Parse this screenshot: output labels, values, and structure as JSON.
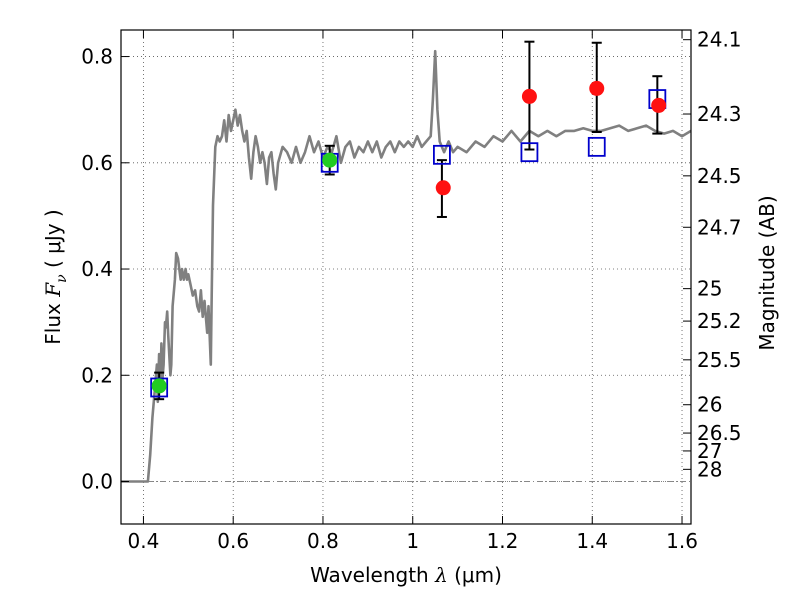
{
  "chart_data": {
    "type": "scatter",
    "xlabel": "Wavelength  λ (μm)",
    "xlabel_parts": {
      "prefix": "Wavelength  ",
      "symbol": "λ",
      "suffix": " (μm)"
    },
    "ylabel": "Flux  F_ν  ( μJy )",
    "ylabel_parts": {
      "prefix": "Flux  ",
      "symbol": "F",
      "subscript": "ν",
      "suffix": "  ( μJy )"
    },
    "y2label": "Magnitude (AB)",
    "xlim": [
      0.35,
      1.62
    ],
    "ylim": [
      -0.08,
      0.85
    ],
    "grid": true,
    "grid_style": "dotted",
    "x_ticks": [
      {
        "value": 0.4,
        "label": "0.4"
      },
      {
        "value": 0.6,
        "label": "0.6"
      },
      {
        "value": 0.8,
        "label": "0.8"
      },
      {
        "value": 1.0,
        "label": "1"
      },
      {
        "value": 1.2,
        "label": "1.2"
      },
      {
        "value": 1.4,
        "label": "1.4"
      },
      {
        "value": 1.6,
        "label": "1.6"
      }
    ],
    "y_ticks": [
      {
        "value": 0.0,
        "label": "0.0"
      },
      {
        "value": 0.2,
        "label": "0.2"
      },
      {
        "value": 0.4,
        "label": "0.4"
      },
      {
        "value": 0.6,
        "label": "0.6"
      },
      {
        "value": 0.8,
        "label": "0.8"
      }
    ],
    "y2_ticks": [
      {
        "value": 24.1,
        "label": "24.1"
      },
      {
        "value": 24.3,
        "label": "24.3"
      },
      {
        "value": 24.5,
        "label": "24.5"
      },
      {
        "value": 24.7,
        "label": "24.7"
      },
      {
        "value": 25.0,
        "label": "25"
      },
      {
        "value": 25.2,
        "label": "25.2"
      },
      {
        "value": 25.5,
        "label": "25.5"
      },
      {
        "value": 26.0,
        "label": "26"
      },
      {
        "value": 26.5,
        "label": "26.5"
      },
      {
        "value": 27.0,
        "label": "27"
      },
      {
        "value": 28.0,
        "label": "28"
      }
    ],
    "zero_line": {
      "y": 0.0,
      "style": "dash-dot",
      "color": "#888888"
    },
    "series": [
      {
        "kind": "line",
        "color": "#808080",
        "points": [
          [
            0.35,
            0.0
          ],
          [
            0.4,
            0.0
          ],
          [
            0.41,
            0.0
          ],
          [
            0.415,
            0.05
          ],
          [
            0.42,
            0.12
          ],
          [
            0.425,
            0.17
          ],
          [
            0.43,
            0.22
          ],
          [
            0.432,
            0.15
          ],
          [
            0.435,
            0.24
          ],
          [
            0.438,
            0.18
          ],
          [
            0.44,
            0.26
          ],
          [
            0.442,
            0.19
          ],
          [
            0.445,
            0.22
          ],
          [
            0.448,
            0.3
          ],
          [
            0.45,
            0.29
          ],
          [
            0.453,
            0.32
          ],
          [
            0.455,
            0.28
          ],
          [
            0.458,
            0.23
          ],
          [
            0.46,
            0.2
          ],
          [
            0.462,
            0.22
          ],
          [
            0.465,
            0.33
          ],
          [
            0.47,
            0.38
          ],
          [
            0.473,
            0.43
          ],
          [
            0.477,
            0.42
          ],
          [
            0.48,
            0.4
          ],
          [
            0.483,
            0.38
          ],
          [
            0.486,
            0.4
          ],
          [
            0.49,
            0.38
          ],
          [
            0.494,
            0.4
          ],
          [
            0.497,
            0.38
          ],
          [
            0.5,
            0.39
          ],
          [
            0.505,
            0.37
          ],
          [
            0.51,
            0.35
          ],
          [
            0.515,
            0.36
          ],
          [
            0.52,
            0.33
          ],
          [
            0.524,
            0.32
          ],
          [
            0.528,
            0.36
          ],
          [
            0.532,
            0.31
          ],
          [
            0.536,
            0.34
          ],
          [
            0.54,
            0.3
          ],
          [
            0.542,
            0.28
          ],
          [
            0.545,
            0.33
          ],
          [
            0.55,
            0.22
          ],
          [
            0.552,
            0.35
          ],
          [
            0.555,
            0.52
          ],
          [
            0.56,
            0.63
          ],
          [
            0.565,
            0.65
          ],
          [
            0.57,
            0.64
          ],
          [
            0.575,
            0.65
          ],
          [
            0.58,
            0.68
          ],
          [
            0.585,
            0.64
          ],
          [
            0.59,
            0.69
          ],
          [
            0.595,
            0.66
          ],
          [
            0.6,
            0.68
          ],
          [
            0.605,
            0.7
          ],
          [
            0.61,
            0.67
          ],
          [
            0.615,
            0.69
          ],
          [
            0.62,
            0.66
          ],
          [
            0.625,
            0.64
          ],
          [
            0.63,
            0.66
          ],
          [
            0.635,
            0.61
          ],
          [
            0.64,
            0.57
          ],
          [
            0.645,
            0.62
          ],
          [
            0.65,
            0.65
          ],
          [
            0.655,
            0.63
          ],
          [
            0.66,
            0.6
          ],
          [
            0.665,
            0.62
          ],
          [
            0.67,
            0.6
          ],
          [
            0.675,
            0.56
          ],
          [
            0.68,
            0.61
          ],
          [
            0.685,
            0.62
          ],
          [
            0.69,
            0.58
          ],
          [
            0.695,
            0.55
          ],
          [
            0.7,
            0.6
          ],
          [
            0.71,
            0.63
          ],
          [
            0.72,
            0.62
          ],
          [
            0.73,
            0.6
          ],
          [
            0.74,
            0.63
          ],
          [
            0.75,
            0.6
          ],
          [
            0.76,
            0.62
          ],
          [
            0.77,
            0.65
          ],
          [
            0.78,
            0.62
          ],
          [
            0.79,
            0.64
          ],
          [
            0.8,
            0.61
          ],
          [
            0.81,
            0.63
          ],
          [
            0.82,
            0.62
          ],
          [
            0.83,
            0.65
          ],
          [
            0.84,
            0.6
          ],
          [
            0.85,
            0.63
          ],
          [
            0.86,
            0.64
          ],
          [
            0.87,
            0.61
          ],
          [
            0.88,
            0.63
          ],
          [
            0.89,
            0.62
          ],
          [
            0.9,
            0.64
          ],
          [
            0.91,
            0.62
          ],
          [
            0.92,
            0.64
          ],
          [
            0.93,
            0.61
          ],
          [
            0.94,
            0.63
          ],
          [
            0.95,
            0.64
          ],
          [
            0.96,
            0.62
          ],
          [
            0.97,
            0.64
          ],
          [
            0.98,
            0.63
          ],
          [
            0.99,
            0.64
          ],
          [
            1.0,
            0.63
          ],
          [
            1.01,
            0.65
          ],
          [
            1.02,
            0.63
          ],
          [
            1.03,
            0.64
          ],
          [
            1.04,
            0.65
          ],
          [
            1.045,
            0.72
          ],
          [
            1.05,
            0.81
          ],
          [
            1.055,
            0.7
          ],
          [
            1.06,
            0.64
          ],
          [
            1.07,
            0.62
          ],
          [
            1.08,
            0.64
          ],
          [
            1.09,
            0.62
          ],
          [
            1.1,
            0.63
          ],
          [
            1.12,
            0.62
          ],
          [
            1.14,
            0.64
          ],
          [
            1.16,
            0.63
          ],
          [
            1.18,
            0.65
          ],
          [
            1.2,
            0.64
          ],
          [
            1.22,
            0.66
          ],
          [
            1.24,
            0.64
          ],
          [
            1.26,
            0.66
          ],
          [
            1.28,
            0.65
          ],
          [
            1.3,
            0.66
          ],
          [
            1.32,
            0.65
          ],
          [
            1.34,
            0.66
          ],
          [
            1.36,
            0.66
          ],
          [
            1.38,
            0.665
          ],
          [
            1.4,
            0.66
          ],
          [
            1.42,
            0.66
          ],
          [
            1.44,
            0.665
          ],
          [
            1.46,
            0.67
          ],
          [
            1.48,
            0.66
          ],
          [
            1.5,
            0.665
          ],
          [
            1.52,
            0.67
          ],
          [
            1.54,
            0.66
          ],
          [
            1.56,
            0.655
          ],
          [
            1.58,
            0.66
          ],
          [
            1.6,
            0.65
          ],
          [
            1.62,
            0.66
          ]
        ]
      },
      {
        "kind": "points",
        "marker": "circle",
        "color": "#22cc22",
        "points": [
          {
            "x": 0.435,
            "y": 0.18
          },
          {
            "x": 0.815,
            "y": 0.605
          }
        ]
      },
      {
        "kind": "points",
        "marker": "square-open",
        "color": "#0000cc",
        "points": [
          {
            "x": 0.435,
            "y": 0.177
          },
          {
            "x": 0.815,
            "y": 0.6
          },
          {
            "x": 1.065,
            "y": 0.615
          },
          {
            "x": 1.26,
            "y": 0.62
          },
          {
            "x": 1.41,
            "y": 0.63
          },
          {
            "x": 1.545,
            "y": 0.72
          }
        ]
      },
      {
        "kind": "points",
        "marker": "circle",
        "color": "#ff1111",
        "points": [
          {
            "x": 1.068,
            "y": 0.553
          },
          {
            "x": 1.26,
            "y": 0.725
          },
          {
            "x": 1.41,
            "y": 0.74
          },
          {
            "x": 1.548,
            "y": 0.708
          }
        ]
      }
    ],
    "error_bars": [
      {
        "x": 0.435,
        "y_low": 0.155,
        "y_high": 0.205
      },
      {
        "x": 0.815,
        "y_low": 0.578,
        "y_high": 0.632
      },
      {
        "x": 1.065,
        "y_low": 0.498,
        "y_high": 0.605
      },
      {
        "x": 1.26,
        "y_low": 0.625,
        "y_high": 0.828
      },
      {
        "x": 1.41,
        "y_low": 0.658,
        "y_high": 0.826
      },
      {
        "x": 1.545,
        "y_low": 0.655,
        "y_high": 0.763
      }
    ]
  }
}
